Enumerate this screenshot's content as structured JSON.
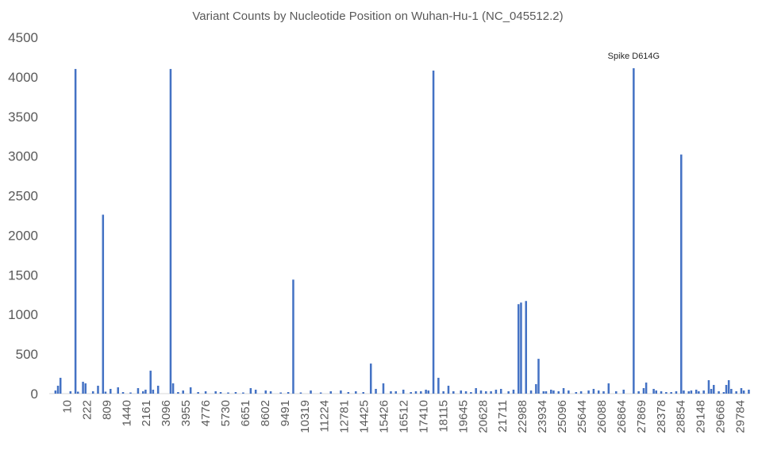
{
  "chart_data": {
    "type": "bar",
    "title": "Variant Counts by Nucleotide Position on Wuhan-Hu-1 (NC_045512.2)",
    "xlabel": "",
    "ylabel": "",
    "ylim": [
      0,
      4500
    ],
    "yticks": [
      0,
      500,
      1000,
      1500,
      2000,
      2500,
      3000,
      3500,
      4000,
      4500
    ],
    "grid": false,
    "legend": "none",
    "bar_color": "#4472c4",
    "x_tick_labels": [
      "10",
      "222",
      "809",
      "1440",
      "2161",
      "3096",
      "3955",
      "4776",
      "5730",
      "6651",
      "8602",
      "9491",
      "10319",
      "11224",
      "12781",
      "14425",
      "15426",
      "16512",
      "17410",
      "18115",
      "19645",
      "20628",
      "21711",
      "22988",
      "23934",
      "25096",
      "25644",
      "26088",
      "26864",
      "27869",
      "28378",
      "28854",
      "29148",
      "29668",
      "29784"
    ],
    "n_positions": 280,
    "bars": [
      [
        2,
        40
      ],
      [
        3,
        100
      ],
      [
        4,
        200
      ],
      [
        8,
        30
      ],
      [
        10,
        4100
      ],
      [
        11,
        25
      ],
      [
        13,
        150
      ],
      [
        14,
        130
      ],
      [
        17,
        30
      ],
      [
        19,
        100
      ],
      [
        21,
        2260
      ],
      [
        22,
        25
      ],
      [
        24,
        60
      ],
      [
        27,
        80
      ],
      [
        29,
        20
      ],
      [
        32,
        15
      ],
      [
        35,
        70
      ],
      [
        37,
        30
      ],
      [
        38,
        50
      ],
      [
        40,
        290
      ],
      [
        41,
        50
      ],
      [
        43,
        100
      ],
      [
        48,
        4100
      ],
      [
        49,
        130
      ],
      [
        51,
        20
      ],
      [
        53,
        40
      ],
      [
        56,
        80
      ],
      [
        59,
        20
      ],
      [
        62,
        30
      ],
      [
        66,
        30
      ],
      [
        68,
        20
      ],
      [
        71,
        15
      ],
      [
        74,
        20
      ],
      [
        77,
        15
      ],
      [
        80,
        70
      ],
      [
        82,
        50
      ],
      [
        86,
        40
      ],
      [
        88,
        30
      ],
      [
        92,
        15
      ],
      [
        95,
        20
      ],
      [
        97,
        1440
      ],
      [
        100,
        15
      ],
      [
        104,
        40
      ],
      [
        108,
        15
      ],
      [
        112,
        30
      ],
      [
        116,
        40
      ],
      [
        119,
        20
      ],
      [
        122,
        30
      ],
      [
        125,
        20
      ],
      [
        128,
        380
      ],
      [
        130,
        60
      ],
      [
        133,
        130
      ],
      [
        136,
        30
      ],
      [
        138,
        30
      ],
      [
        141,
        50
      ],
      [
        144,
        20
      ],
      [
        146,
        30
      ],
      [
        148,
        30
      ],
      [
        150,
        50
      ],
      [
        151,
        40
      ],
      [
        153,
        4080
      ],
      [
        155,
        200
      ],
      [
        157,
        30
      ],
      [
        159,
        100
      ],
      [
        161,
        30
      ],
      [
        164,
        40
      ],
      [
        166,
        30
      ],
      [
        168,
        20
      ],
      [
        170,
        70
      ],
      [
        172,
        40
      ],
      [
        174,
        30
      ],
      [
        176,
        30
      ],
      [
        178,
        50
      ],
      [
        180,
        60
      ],
      [
        183,
        30
      ],
      [
        185,
        50
      ],
      [
        187,
        1130
      ],
      [
        188,
        1150
      ],
      [
        190,
        1170
      ],
      [
        192,
        40
      ],
      [
        194,
        120
      ],
      [
        195,
        440
      ],
      [
        197,
        30
      ],
      [
        198,
        30
      ],
      [
        200,
        50
      ],
      [
        201,
        40
      ],
      [
        203,
        30
      ],
      [
        205,
        70
      ],
      [
        207,
        40
      ],
      [
        210,
        20
      ],
      [
        212,
        30
      ],
      [
        215,
        40
      ],
      [
        217,
        60
      ],
      [
        219,
        40
      ],
      [
        221,
        30
      ],
      [
        223,
        130
      ],
      [
        226,
        30
      ],
      [
        229,
        50
      ],
      [
        233,
        4110
      ],
      [
        235,
        30
      ],
      [
        237,
        70
      ],
      [
        238,
        140
      ],
      [
        241,
        60
      ],
      [
        242,
        40
      ],
      [
        244,
        30
      ],
      [
        246,
        20
      ],
      [
        248,
        20
      ],
      [
        250,
        30
      ],
      [
        252,
        3020
      ],
      [
        253,
        40
      ],
      [
        255,
        30
      ],
      [
        256,
        40
      ],
      [
        258,
        50
      ],
      [
        259,
        30
      ],
      [
        261,
        40
      ],
      [
        263,
        170
      ],
      [
        264,
        60
      ],
      [
        265,
        110
      ],
      [
        267,
        30
      ],
      [
        269,
        20
      ],
      [
        270,
        110
      ],
      [
        272,
        60
      ],
      [
        271,
        170
      ],
      [
        274,
        30
      ],
      [
        276,
        70
      ],
      [
        277,
        40
      ],
      [
        279,
        50
      ]
    ],
    "annotations": [
      {
        "text": "Spike D614G",
        "x_index": 233,
        "y": 4110
      }
    ]
  }
}
